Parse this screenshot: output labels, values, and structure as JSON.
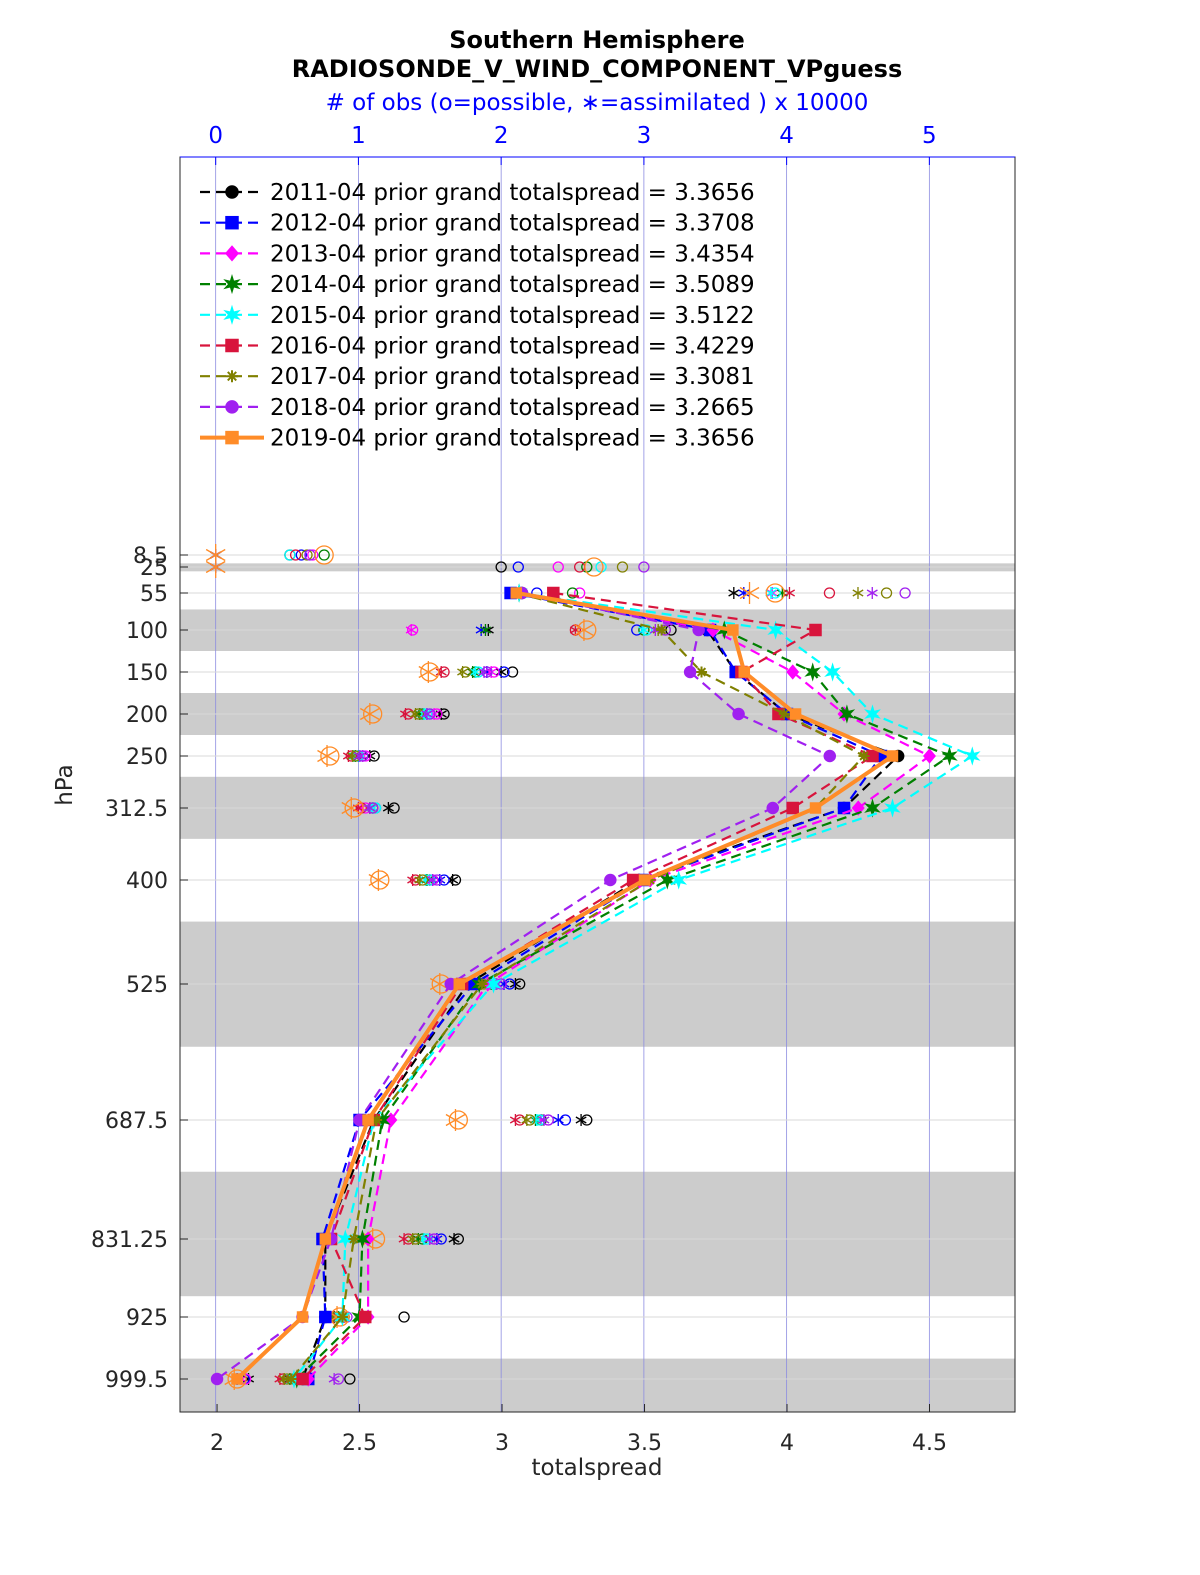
{
  "chart_data": {
    "type": "line",
    "title": "Southern Hemisphere",
    "subtitle": "RADIOSONDE_V_WIND_COMPONENT_VPguess",
    "top_axis_label": "# of obs (o=possible, ∗=assimilated ) x 10000",
    "xlabel": "totalspread",
    "ylabel": "hPa",
    "xlim": [
      1.87,
      4.8
    ],
    "x_ticks": [
      "2",
      "2.5",
      "3",
      "3.5",
      "4",
      "4.5"
    ],
    "x_tick_values": [
      2,
      2.5,
      3,
      3.5,
      4,
      4.5
    ],
    "top_xlim": [
      -0.25,
      5.6
    ],
    "top_ticks": [
      "0",
      "1",
      "2",
      "3",
      "4",
      "5"
    ],
    "top_tick_values": [
      0,
      1,
      2,
      3,
      4,
      5
    ],
    "y_axis": "pressure, decreasing upward",
    "levels": [
      8.5,
      25,
      55,
      100,
      150,
      200,
      250,
      312.5,
      400,
      525,
      687.5,
      831.25,
      925,
      999.5
    ],
    "level_labels": [
      "8.5",
      "25",
      "55",
      "100",
      "150",
      "200",
      "250",
      "312.5",
      "400",
      "525",
      "687.5",
      "831.25",
      "925",
      "999.5"
    ],
    "shaded_bands": [
      [
        20,
        30
      ],
      [
        75,
        125
      ],
      [
        175,
        225
      ],
      [
        275,
        350
      ],
      [
        450,
        600
      ],
      [
        750,
        900
      ],
      [
        975,
        1050
      ]
    ],
    "grid": true,
    "legend_position": "top-left",
    "series": [
      {
        "name": "2011-04 prior grand totalspread = 3.3656",
        "color": "#000000",
        "style": "dashed",
        "marker": "circle",
        "levels": [
          55,
          100,
          150,
          200,
          250,
          312.5,
          400,
          525,
          687.5,
          831.25,
          925,
          999.5
        ],
        "values": [
          3.07,
          3.72,
          3.82,
          4.0,
          4.39,
          4.2,
          3.48,
          2.88,
          2.55,
          2.38,
          2.38,
          2.3
        ],
        "obs_possible": [
          2.12,
          3.19,
          2.08,
          1.6,
          1.11,
          1.25,
          1.68,
          2.13,
          2.6,
          1.7,
          1.32,
          0.94
        ],
        "obs_assimilated": [
          3.63,
          1.91,
          2.0,
          1.58,
          1.08,
          1.21,
          1.66,
          2.1,
          2.56,
          1.67,
          0.83,
          0.23
        ]
      },
      {
        "name": "2012-04 prior grand totalspread = 3.3708",
        "color": "#0000ff",
        "style": "dashed",
        "marker": "square",
        "levels": [
          55,
          100,
          150,
          200,
          250,
          312.5,
          400,
          525,
          687.5,
          831.25,
          925,
          999.5
        ],
        "values": [
          3.03,
          3.73,
          3.82,
          4.0,
          4.33,
          4.2,
          3.5,
          2.9,
          2.5,
          2.37,
          2.38,
          2.32
        ],
        "obs_possible": [
          2.25,
          2.95,
          2.02,
          1.5,
          1.03,
          1.12,
          1.6,
          2.06,
          2.45,
          1.58,
          0.8,
          0.2
        ],
        "obs_assimilated": [
          3.7,
          1.86,
          1.9,
          1.48,
          1.0,
          1.1,
          1.57,
          2.02,
          2.4,
          1.55,
          0.78,
          0.15
        ]
      },
      {
        "name": "2013-04 prior grand totalspread = 3.4354",
        "color": "#ff00ff",
        "style": "dashed",
        "marker": "diamond",
        "levels": [
          55,
          100,
          150,
          200,
          250,
          312.5,
          400,
          525,
          687.5,
          831.25,
          925,
          999.5
        ],
        "values": [
          3.06,
          3.74,
          4.02,
          4.2,
          4.5,
          4.25,
          3.52,
          2.95,
          2.61,
          2.53,
          2.53,
          2.32
        ],
        "obs_possible": [
          2.55,
          1.38,
          1.95,
          1.55,
          1.05,
          1.05,
          1.52,
          2.0,
          2.33,
          1.53,
          0.88,
          0.21
        ],
        "obs_assimilated": [
          3.9,
          1.37,
          1.93,
          1.53,
          1.03,
          1.02,
          1.5,
          1.96,
          2.28,
          1.5,
          0.85,
          0.18
        ]
      },
      {
        "name": "2014-04 prior grand totalspread = 3.5089",
        "color": "#008000",
        "style": "dashed",
        "marker": "hexagram",
        "levels": [
          55,
          100,
          150,
          200,
          250,
          312.5,
          400,
          525,
          687.5,
          831.25,
          925,
          999.5
        ],
        "values": [
          3.06,
          3.78,
          4.09,
          4.21,
          4.57,
          4.3,
          3.58,
          2.92,
          2.58,
          2.51,
          2.5,
          2.28
        ],
        "obs_possible": [
          2.5,
          3.0,
          1.82,
          1.45,
          1.0,
          1.1,
          1.5,
          1.95,
          2.28,
          1.45,
          0.9,
          0.55
        ],
        "obs_assimilated": [
          3.97,
          1.89,
          1.8,
          1.43,
          0.98,
          1.08,
          1.48,
          1.93,
          2.24,
          1.42,
          0.86,
          0.52
        ]
      },
      {
        "name": "2015-04 prior grand totalspread = 3.5122",
        "color": "#00ffff",
        "style": "dashed",
        "marker": "hexagram",
        "levels": [
          55,
          100,
          150,
          200,
          250,
          312.5,
          400,
          525,
          687.5,
          831.25,
          925,
          999.5
        ],
        "values": [
          3.06,
          3.96,
          4.16,
          4.3,
          4.65,
          4.37,
          3.62,
          2.97,
          2.55,
          2.45,
          2.44,
          2.27
        ],
        "obs_possible": [
          3.92,
          3.02,
          1.84,
          1.48,
          1.0,
          1.12,
          1.5,
          1.95,
          2.27,
          1.48,
          0.87,
          0.6
        ],
        "obs_assimilated": [
          3.89,
          3.0,
          1.82,
          1.46,
          0.97,
          1.1,
          1.47,
          1.92,
          2.25,
          1.46,
          0.85,
          0.58
        ]
      },
      {
        "name": "2016-04 prior grand totalspread = 3.4229",
        "color": "#d8143c",
        "style": "dashed",
        "marker": "square",
        "levels": [
          55,
          100,
          150,
          200,
          250,
          312.5,
          400,
          525,
          687.5,
          831.25,
          925,
          999.5
        ],
        "values": [
          3.18,
          4.1,
          3.84,
          3.97,
          4.3,
          4.02,
          3.46,
          2.86,
          2.55,
          2.4,
          2.52,
          2.3
        ],
        "obs_possible": [
          4.3,
          2.52,
          1.6,
          1.35,
          0.95,
          1.02,
          1.4,
          1.85,
          2.13,
          1.35,
          0.82,
          0.47
        ],
        "obs_assimilated": [
          4.02,
          2.52,
          1.58,
          1.33,
          0.93,
          1.0,
          1.38,
          1.83,
          2.1,
          1.32,
          0.8,
          0.45
        ]
      },
      {
        "name": "2017-04 prior grand totalspread = 3.3081",
        "color": "#808000",
        "style": "dashed",
        "marker": "asterisk",
        "levels": [
          55,
          100,
          150,
          200,
          250,
          312.5,
          400,
          525,
          687.5,
          831.25,
          925,
          999.5
        ],
        "values": [
          3.05,
          3.56,
          3.7,
          3.99,
          4.27,
          4.1,
          3.52,
          2.93,
          2.56,
          2.48,
          2.44,
          2.26
        ],
        "obs_possible": [
          4.7,
          3.15,
          1.75,
          1.42,
          0.98,
          1.1,
          1.45,
          1.88,
          2.2,
          1.4,
          0.85,
          0.5
        ],
        "obs_assimilated": [
          4.5,
          3.1,
          1.73,
          1.4,
          0.96,
          1.08,
          1.43,
          1.86,
          2.18,
          1.38,
          0.82,
          0.48
        ]
      },
      {
        "name": "2018-04 prior grand totalspread = 3.2665",
        "color": "#a020f0",
        "style": "dashed",
        "marker": "circle",
        "levels": [
          55,
          100,
          150,
          200,
          250,
          312.5,
          400,
          525,
          687.5,
          831.25,
          925,
          999.5
        ],
        "values": [
          3.07,
          3.69,
          3.66,
          3.83,
          4.15,
          3.95,
          3.38,
          2.82,
          2.5,
          2.4,
          2.3,
          2.0
        ],
        "obs_possible": [
          4.83,
          3.15,
          1.9,
          1.5,
          1.03,
          1.1,
          1.55,
          2.0,
          2.33,
          1.53,
          0.92,
          0.86
        ],
        "obs_assimilated": [
          4.6,
          3.08,
          1.88,
          1.48,
          1.01,
          1.08,
          1.52,
          1.97,
          2.3,
          1.5,
          0.9,
          0.83
        ]
      },
      {
        "name": "2019-04 prior grand totalspread = 3.3656",
        "color": "#ff8c28",
        "style": "solid",
        "marker": "square",
        "levels": [
          55,
          100,
          150,
          200,
          250,
          312.5,
          400,
          525,
          687.5,
          831.25,
          925,
          999.5
        ],
        "values": [
          3.05,
          3.81,
          3.85,
          4.03,
          4.37,
          4.1,
          3.5,
          2.85,
          2.53,
          2.38,
          2.3,
          2.07
        ],
        "obs_possible": [
          3.92,
          2.6,
          1.5,
          1.1,
          0.8,
          0.97,
          1.15,
          1.58,
          1.7,
          1.12,
          0.87,
          0.15
        ],
        "obs_assimilated": [
          3.74,
          2.58,
          1.49,
          1.08,
          0.78,
          0.95,
          1.14,
          1.57,
          1.68,
          1.1,
          0.85,
          0.13
        ]
      }
    ],
    "extra_obs": [
      {
        "level": 8.5,
        "obs_possible": [
          0.52,
          0.6,
          0.68,
          0.76,
          0.52,
          0.56,
          0.64,
          0.66,
          0.76
        ],
        "obs_assimilated": [
          0,
          0,
          0,
          0,
          0,
          0,
          0,
          0,
          0
        ]
      },
      {
        "level": 25,
        "obs_possible": [
          2.0,
          2.12,
          2.4,
          2.6,
          2.7,
          2.55,
          2.85,
          3.0,
          2.65
        ],
        "obs_assimilated": [
          0,
          0,
          0,
          0,
          0,
          0,
          0,
          0,
          0
        ]
      }
    ]
  }
}
